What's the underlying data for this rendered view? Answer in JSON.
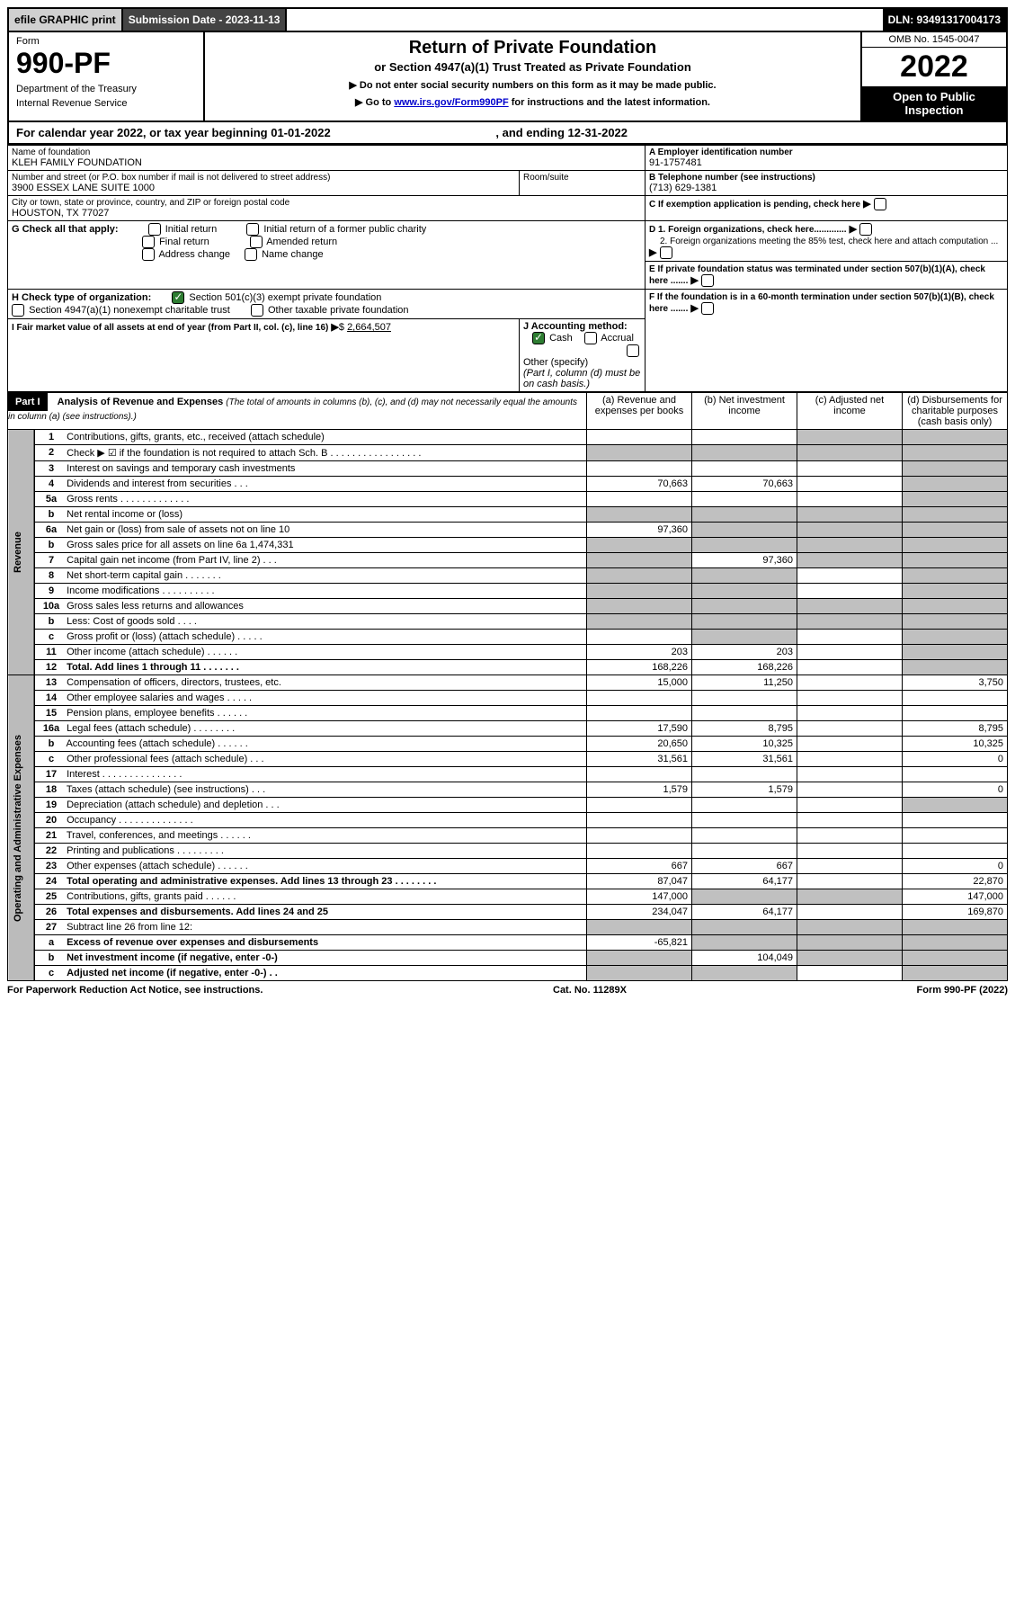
{
  "top_bar": {
    "efile": "efile GRAPHIC print",
    "submission_label": "Submission Date - 2023-11-13",
    "dln": "DLN: 93491317004173"
  },
  "header": {
    "form_label": "Form",
    "form_no": "990-PF",
    "dept1": "Department of the Treasury",
    "dept2": "Internal Revenue Service",
    "title": "Return of Private Foundation",
    "subtitle": "or Section 4947(a)(1) Trust Treated as Private Foundation",
    "note1": "▶ Do not enter social security numbers on this form as it may be made public.",
    "note2_pre": "▶ Go to ",
    "note2_link": "www.irs.gov/Form990PF",
    "note2_post": " for instructions and the latest information.",
    "omb": "OMB No. 1545-0047",
    "year": "2022",
    "open_pub": "Open to Public Inspection"
  },
  "cal_year": {
    "pre": "For calendar year 2022, or tax year beginning 01-01-2022",
    "mid": ", and ending 12-31-2022"
  },
  "id": {
    "name_label": "Name of foundation",
    "name": "KLEH FAMILY FOUNDATION",
    "addr_label": "Number and street (or P.O. box number if mail is not delivered to street address)",
    "addr": "3900 ESSEX LANE SUITE 1000",
    "room_label": "Room/suite",
    "city_label": "City or town, state or province, country, and ZIP or foreign postal code",
    "city": "HOUSTON, TX  77027",
    "a_label": "A Employer identification number",
    "a_val": "91-1757481",
    "b_label": "B Telephone number (see instructions)",
    "b_val": "(713) 629-1381",
    "c_label": "C If exemption application is pending, check here",
    "d1": "D 1. Foreign organizations, check here.............",
    "d2": "2. Foreign organizations meeting the 85% test, check here and attach computation ...",
    "e": "E  If private foundation status was terminated under section 507(b)(1)(A), check here .......",
    "f": "F  If the foundation is in a 60-month termination under section 507(b)(1)(B), check here .......",
    "g_label": "G Check all that apply:",
    "g_opts": [
      "Initial return",
      "Final return",
      "Address change",
      "Initial return of a former public charity",
      "Amended return",
      "Name change"
    ],
    "h_label": "H Check type of organization:",
    "h1": "Section 501(c)(3) exempt private foundation",
    "h2": "Section 4947(a)(1) nonexempt charitable trust",
    "h3": "Other taxable private foundation",
    "i_label": "I Fair market value of all assets at end of year (from Part II, col. (c), line 16)",
    "i_val": "2,664,507",
    "j_label": "J Accounting method:",
    "j_cash": "Cash",
    "j_accrual": "Accrual",
    "j_other": "Other (specify)",
    "j_note": "(Part I, column (d) must be on cash basis.)"
  },
  "part1": {
    "label": "Part I",
    "title": "Analysis of Revenue and Expenses",
    "title_note": "(The total of amounts in columns (b), (c), and (d) may not necessarily equal the amounts in column (a) (see instructions).)",
    "col_a": "(a)   Revenue and expenses per books",
    "col_b": "(b)   Net investment income",
    "col_c": "(c)   Adjusted net income",
    "col_d": "(d)  Disbursements for charitable purposes (cash basis only)",
    "revenue_label": "Revenue",
    "expenses_label": "Operating and Administrative Expenses"
  },
  "rows": [
    {
      "n": "1",
      "t": "Contributions, gifts, grants, etc., received (attach schedule)",
      "a": "",
      "b": "",
      "c": "s",
      "d": "s"
    },
    {
      "n": "2",
      "t": "Check ▶ ☑ if the foundation is not required to attach Sch. B   . . . . . . . . . . . . . . . . .",
      "a": "s",
      "b": "s",
      "c": "s",
      "d": "s"
    },
    {
      "n": "3",
      "t": "Interest on savings and temporary cash investments",
      "a": "",
      "b": "",
      "c": "",
      "d": "s"
    },
    {
      "n": "4",
      "t": "Dividends and interest from securities   . . .",
      "a": "70,663",
      "b": "70,663",
      "c": "",
      "d": "s"
    },
    {
      "n": "5a",
      "t": "Gross rents   . . . . . . . . . . . . .",
      "a": "",
      "b": "",
      "c": "",
      "d": "s"
    },
    {
      "n": "b",
      "t": "Net rental income or (loss)  ",
      "a": "s",
      "b": "s",
      "c": "s",
      "d": "s"
    },
    {
      "n": "6a",
      "t": "Net gain or (loss) from sale of assets not on line 10",
      "a": "97,360",
      "b": "s",
      "c": "s",
      "d": "s"
    },
    {
      "n": "b",
      "t": "Gross sales price for all assets on line 6a           1,474,331",
      "a": "s",
      "b": "s",
      "c": "s",
      "d": "s"
    },
    {
      "n": "7",
      "t": "Capital gain net income (from Part IV, line 2)   . . .",
      "a": "s",
      "b": "97,360",
      "c": "s",
      "d": "s"
    },
    {
      "n": "8",
      "t": "Net short-term capital gain   . . . . . . .",
      "a": "s",
      "b": "s",
      "c": "",
      "d": "s"
    },
    {
      "n": "9",
      "t": "Income modifications . . . . . . . . . .",
      "a": "s",
      "b": "s",
      "c": "",
      "d": "s"
    },
    {
      "n": "10a",
      "t": "Gross sales less returns and allowances",
      "a": "s",
      "b": "s",
      "c": "s",
      "d": "s"
    },
    {
      "n": "b",
      "t": "Less: Cost of goods sold   . . . .",
      "a": "s",
      "b": "s",
      "c": "s",
      "d": "s"
    },
    {
      "n": "c",
      "t": "Gross profit or (loss) (attach schedule)   . . . . .",
      "a": "",
      "b": "s",
      "c": "",
      "d": "s"
    },
    {
      "n": "11",
      "t": "Other income (attach schedule)   . . . . . .",
      "a": "203",
      "b": "203",
      "c": "",
      "d": "s"
    },
    {
      "n": "12",
      "t": "Total. Add lines 1 through 11   . . . . . . .",
      "a": "168,226",
      "b": "168,226",
      "c": "",
      "d": "s",
      "bold": true
    },
    {
      "n": "13",
      "t": "Compensation of officers, directors, trustees, etc.",
      "a": "15,000",
      "b": "11,250",
      "c": "",
      "d": "3,750"
    },
    {
      "n": "14",
      "t": "Other employee salaries and wages   . . . . .",
      "a": "",
      "b": "",
      "c": "",
      "d": ""
    },
    {
      "n": "15",
      "t": "Pension plans, employee benefits   . . . . . .",
      "a": "",
      "b": "",
      "c": "",
      "d": ""
    },
    {
      "n": "16a",
      "t": "Legal fees (attach schedule) . . . . . . . .",
      "a": "17,590",
      "b": "8,795",
      "c": "",
      "d": "8,795"
    },
    {
      "n": "b",
      "t": "Accounting fees (attach schedule) . . . . . .",
      "a": "20,650",
      "b": "10,325",
      "c": "",
      "d": "10,325"
    },
    {
      "n": "c",
      "t": "Other professional fees (attach schedule)   . . .",
      "a": "31,561",
      "b": "31,561",
      "c": "",
      "d": "0"
    },
    {
      "n": "17",
      "t": "Interest . . . . . . . . . . . . . . .",
      "a": "",
      "b": "",
      "c": "",
      "d": ""
    },
    {
      "n": "18",
      "t": "Taxes (attach schedule) (see instructions)   . . .",
      "a": "1,579",
      "b": "1,579",
      "c": "",
      "d": "0"
    },
    {
      "n": "19",
      "t": "Depreciation (attach schedule) and depletion   . . .",
      "a": "",
      "b": "",
      "c": "",
      "d": "s"
    },
    {
      "n": "20",
      "t": "Occupancy . . . . . . . . . . . . . .",
      "a": "",
      "b": "",
      "c": "",
      "d": ""
    },
    {
      "n": "21",
      "t": "Travel, conferences, and meetings . . . . . .",
      "a": "",
      "b": "",
      "c": "",
      "d": ""
    },
    {
      "n": "22",
      "t": "Printing and publications . . . . . . . . .",
      "a": "",
      "b": "",
      "c": "",
      "d": ""
    },
    {
      "n": "23",
      "t": "Other expenses (attach schedule) . . . . . .",
      "a": "667",
      "b": "667",
      "c": "",
      "d": "0"
    },
    {
      "n": "24",
      "t": "Total operating and administrative expenses. Add lines 13 through 23   . . . . . . . .",
      "a": "87,047",
      "b": "64,177",
      "c": "",
      "d": "22,870",
      "bold": true
    },
    {
      "n": "25",
      "t": "Contributions, gifts, grants paid   . . . . . .",
      "a": "147,000",
      "b": "s",
      "c": "s",
      "d": "147,000"
    },
    {
      "n": "26",
      "t": "Total expenses and disbursements. Add lines 24 and 25",
      "a": "234,047",
      "b": "64,177",
      "c": "",
      "d": "169,870",
      "bold": true
    },
    {
      "n": "27",
      "t": "Subtract line 26 from line 12:",
      "a": "s",
      "b": "s",
      "c": "s",
      "d": "s"
    },
    {
      "n": "a",
      "t": "Excess of revenue over expenses and disbursements",
      "a": "-65,821",
      "b": "s",
      "c": "s",
      "d": "s",
      "bold": true
    },
    {
      "n": "b",
      "t": "Net investment income (if negative, enter -0-)",
      "a": "s",
      "b": "104,049",
      "c": "s",
      "d": "s",
      "bold": true
    },
    {
      "n": "c",
      "t": "Adjusted net income (if negative, enter -0-)   . .",
      "a": "s",
      "b": "s",
      "c": "",
      "d": "s",
      "bold": true
    }
  ],
  "footer": {
    "left": "For Paperwork Reduction Act Notice, see instructions.",
    "mid": "Cat. No. 11289X",
    "right": "Form 990-PF (2022)"
  }
}
